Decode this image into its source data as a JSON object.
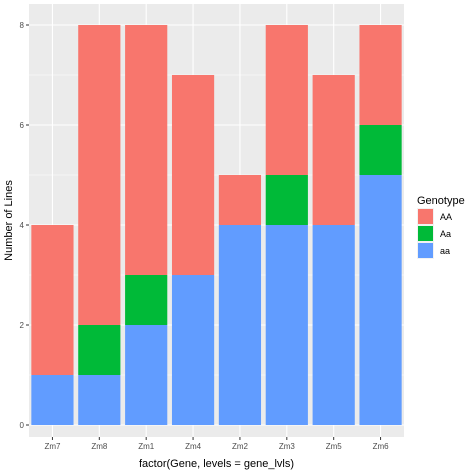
{
  "chart_data": {
    "type": "bar",
    "stacked": true,
    "xlabel": "factor(Gene, levels = gene_lvls)",
    "ylabel": "Number of Lines",
    "ylim": [
      0,
      8.2
    ],
    "yticks": [
      0,
      2,
      4,
      6,
      8
    ],
    "grid": true,
    "legend_position": "right",
    "legend_title": "Genotype",
    "categories": [
      "Zm7",
      "Zm8",
      "Zm1",
      "Zm4",
      "Zm2",
      "Zm3",
      "Zm5",
      "Zm6"
    ],
    "series": [
      {
        "name": "AA",
        "color": "#F8766D",
        "values": [
          3,
          6,
          5,
          4,
          1,
          3,
          3,
          2
        ]
      },
      {
        "name": "Aa",
        "color": "#00BA38",
        "values": [
          0,
          1,
          1,
          0,
          0,
          1,
          0,
          1
        ]
      },
      {
        "name": "aa",
        "color": "#619CFF",
        "values": [
          1,
          1,
          2,
          3,
          4,
          4,
          4,
          5
        ]
      }
    ],
    "legend_order": [
      "AA",
      "Aa",
      "aa"
    ],
    "stack_order_bottom_to_top": [
      "aa",
      "Aa",
      "AA"
    ]
  }
}
